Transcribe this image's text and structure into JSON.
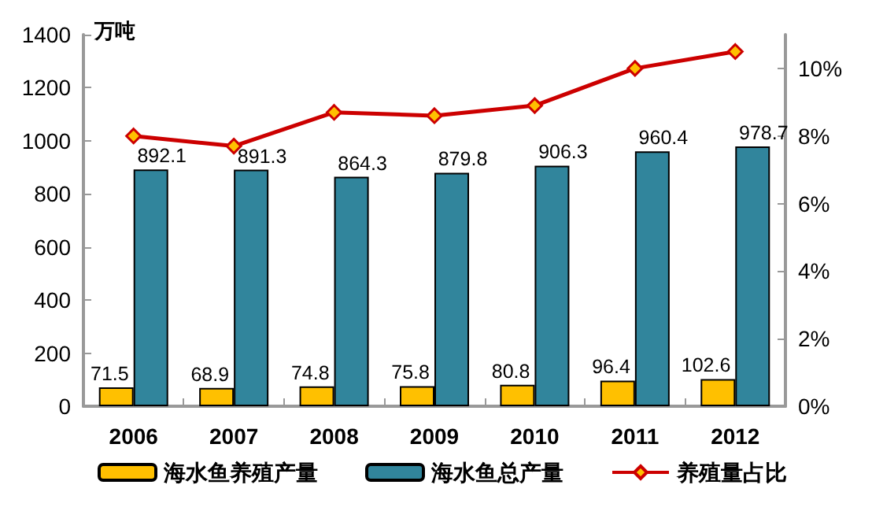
{
  "chart_data": {
    "type": "bar",
    "ylabel": "万吨",
    "categories": [
      "2006",
      "2007",
      "2008",
      "2009",
      "2010",
      "2011",
      "2012"
    ],
    "series": [
      {
        "name": "海水鱼养殖产量",
        "color": "#ffc000",
        "values": [
          71.5,
          68.9,
          74.8,
          75.8,
          80.8,
          96.4,
          102.6
        ],
        "value_labels": [
          "71.5",
          "68.9",
          "74.8",
          "75.8",
          "80.8",
          "96.4",
          "102.6"
        ]
      },
      {
        "name": "海水鱼总产量",
        "color": "#31859c",
        "values": [
          892.1,
          891.3,
          864.3,
          879.8,
          906.3,
          960.4,
          978.7
        ],
        "value_labels": [
          "892.1",
          "891.3",
          "864.3",
          "879.8",
          "906.3",
          "960.4",
          "978.7"
        ]
      },
      {
        "name": "养殖量占比",
        "type": "line",
        "axis": "y2",
        "color": "#cc0000",
        "marker": "diamond",
        "values": [
          8.0,
          7.7,
          8.7,
          8.6,
          8.9,
          10.0,
          10.5
        ]
      }
    ],
    "ylim": [
      0,
      1400
    ],
    "yticks": [
      0,
      200,
      400,
      600,
      800,
      1000,
      1200,
      1400
    ],
    "y2lim": [
      0,
      11
    ],
    "y2ticks": [
      {
        "value": 0,
        "label": "0%"
      },
      {
        "value": 2,
        "label": "2%"
      },
      {
        "value": 4,
        "label": "4%"
      },
      {
        "value": 6,
        "label": "6%"
      },
      {
        "value": 8,
        "label": "8%"
      },
      {
        "value": 10,
        "label": "10%"
      }
    ],
    "grid": false,
    "legend": "bottom"
  }
}
